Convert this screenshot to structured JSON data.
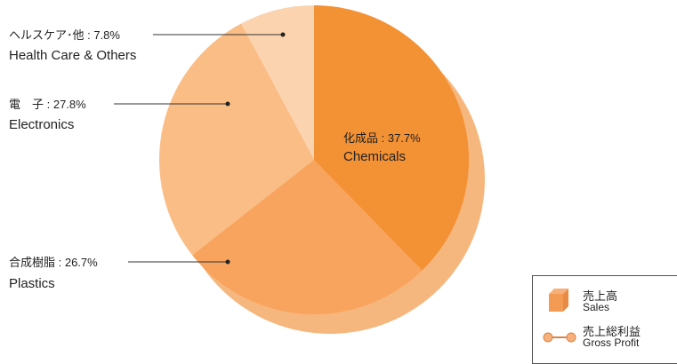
{
  "chart_data": {
    "type": "pie",
    "slices": [
      {
        "label_jp": "化成品",
        "label_en": "Chemicals",
        "value": 37.7,
        "value_text": "37.7%",
        "color": "#F39135"
      },
      {
        "label_jp": "合成樹脂",
        "label_en": "Plastics",
        "value": 26.7,
        "value_text": "26.7%",
        "color": "#F8A45E"
      },
      {
        "label_jp": "電　子",
        "label_en": "Electronics",
        "value": 27.8,
        "value_text": "27.8%",
        "color": "#F9BD85"
      },
      {
        "label_jp": "ヘルスケア･他",
        "label_en": "Health Care & Others",
        "value": 7.8,
        "value_text": "7.8%",
        "color": "#FBD3AE"
      }
    ],
    "legend": [
      {
        "jp": "売上高",
        "en": "Sales",
        "icon": "cube-icon"
      },
      {
        "jp": "売上総利益",
        "en": "Gross Profit",
        "icon": "line-marker-icon"
      }
    ],
    "shadow_color": "#F6B77E",
    "legend_placement": "bottom-right"
  }
}
